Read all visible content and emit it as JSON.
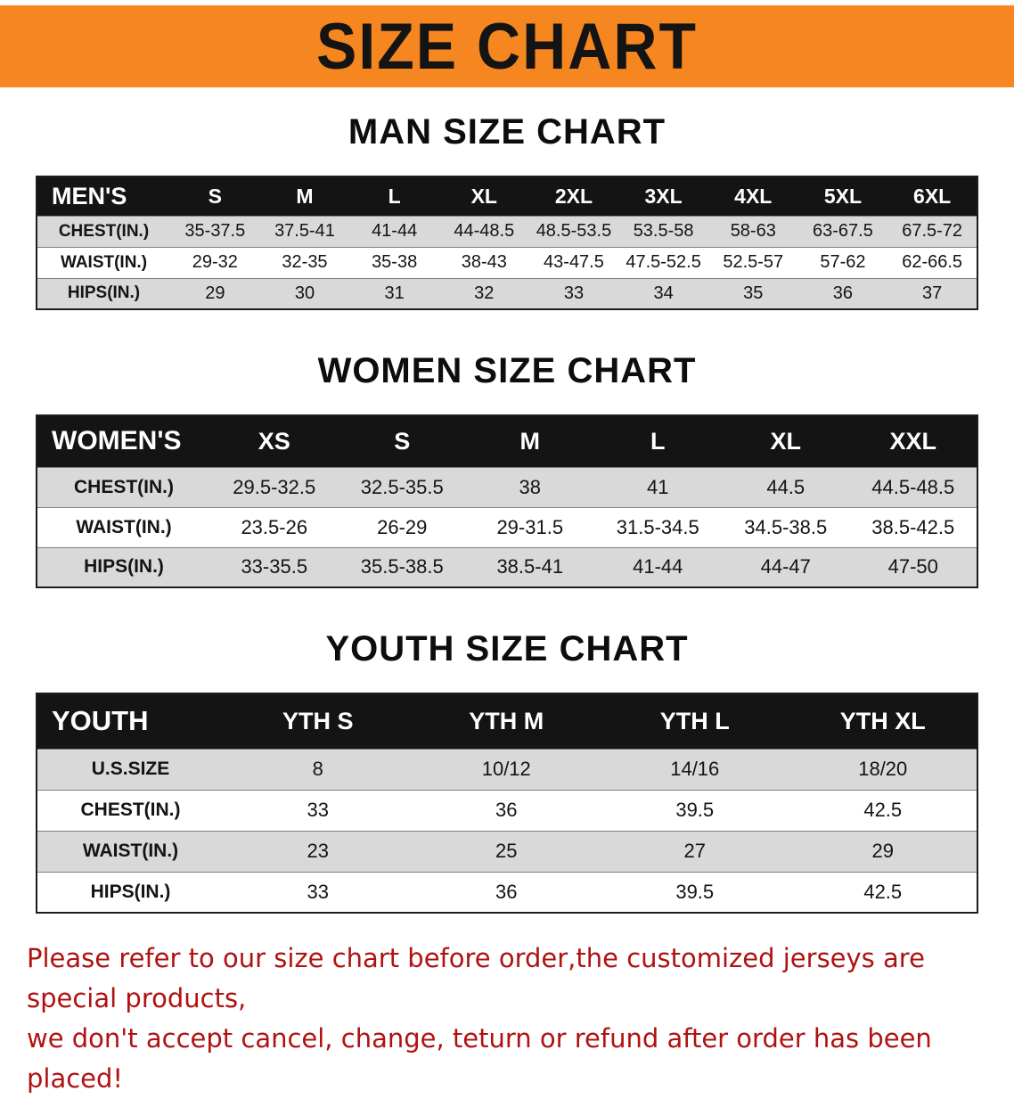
{
  "banner": {
    "title": "SIZE CHART",
    "bg_color": "#F6861F"
  },
  "sections": [
    {
      "id": "man-size-chart",
      "heading": "MAN SIZE CHART",
      "table": {
        "header": [
          "MEN'S",
          "S",
          "M",
          "L",
          "XL",
          "2XL",
          "3XL",
          "4XL",
          "5XL",
          "6XL"
        ],
        "rows": [
          [
            "CHEST(IN.)",
            "35-37.5",
            "37.5-41",
            "41-44",
            "44-48.5",
            "48.5-53.5",
            "53.5-58",
            "58-63",
            "63-67.5",
            "67.5-72"
          ],
          [
            "WAIST(IN.)",
            "29-32",
            "32-35",
            "35-38",
            "38-43",
            "43-47.5",
            "47.5-52.5",
            "52.5-57",
            "57-62",
            "62-66.5"
          ],
          [
            "HIPS(IN.)",
            "29",
            "30",
            "31",
            "32",
            "33",
            "34",
            "35",
            "36",
            "37"
          ]
        ]
      }
    },
    {
      "id": "women-size-chart",
      "heading": "WOMEN SIZE CHART",
      "table": {
        "header": [
          "WOMEN'S",
          "XS",
          "S",
          "M",
          "L",
          "XL",
          "XXL"
        ],
        "rows": [
          [
            "CHEST(IN.)",
            "29.5-32.5",
            "32.5-35.5",
            "38",
            "41",
            "44.5",
            "44.5-48.5"
          ],
          [
            "WAIST(IN.)",
            "23.5-26",
            "26-29",
            "29-31.5",
            "31.5-34.5",
            "34.5-38.5",
            "38.5-42.5"
          ],
          [
            "HIPS(IN.)",
            "33-35.5",
            "35.5-38.5",
            "38.5-41",
            "41-44",
            "44-47",
            "47-50"
          ]
        ]
      }
    },
    {
      "id": "youth-size-chart",
      "heading": "YOUTH SIZE CHART",
      "table": {
        "header": [
          "YOUTH",
          "YTH S",
          "YTH M",
          "YTH L",
          "YTH XL"
        ],
        "rows": [
          [
            "U.S.SIZE",
            "8",
            "10/12",
            "14/16",
            "18/20"
          ],
          [
            "CHEST(IN.)",
            "33",
            "36",
            "39.5",
            "42.5"
          ],
          [
            "WAIST(IN.)",
            "23",
            "25",
            "27",
            "29"
          ],
          [
            "HIPS(IN.)",
            "33",
            "36",
            "39.5",
            "42.5"
          ]
        ]
      }
    }
  ],
  "footer": {
    "line1": "Please refer to our size chart before order,the customized jerseys are special products,",
    "line2": "we don't accept cancel, change, teturn or refund after order has been placed!",
    "text_color": "#B01212"
  },
  "colors": {
    "banner_orange": "#F6861F",
    "header_black": "#141414",
    "stripe_gray": "#D9D9D9",
    "notice_red": "#B01212"
  }
}
